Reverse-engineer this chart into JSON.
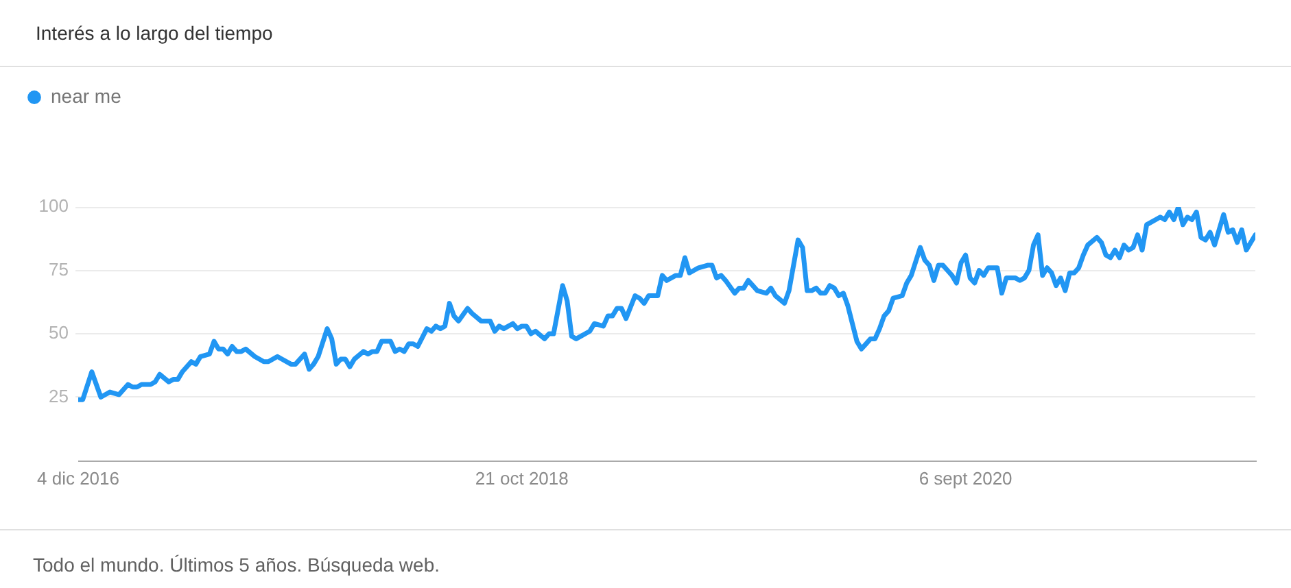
{
  "chart_data": {
    "type": "line",
    "title": "Interés a lo largo del tiempo",
    "legend": "top left",
    "grid": "y",
    "marker": "none",
    "line_style": "solid",
    "x": [
      "2016-12-04",
      "2016-12-11",
      "2016-12-25",
      "2017-01-08",
      "2017-01-15",
      "2017-01-22",
      "2017-02-05",
      "2017-02-19",
      "2017-02-26",
      "2017-03-05",
      "2017-03-12",
      "2017-03-26",
      "2017-04-02",
      "2017-04-09",
      "2017-04-23",
      "2017-04-30",
      "2017-05-07",
      "2017-05-14",
      "2017-05-28",
      "2017-06-04",
      "2017-06-11",
      "2017-06-25",
      "2017-07-02",
      "2017-07-09",
      "2017-07-16",
      "2017-07-23",
      "2017-07-30",
      "2017-08-06",
      "2017-08-13",
      "2017-08-20",
      "2017-09-03",
      "2017-09-17",
      "2017-09-24",
      "2017-10-08",
      "2017-10-15",
      "2017-10-29",
      "2017-11-05",
      "2017-11-19",
      "2017-11-26",
      "2017-12-03",
      "2017-12-10",
      "2017-12-24",
      "2017-12-31",
      "2018-01-07",
      "2018-01-14",
      "2018-01-21",
      "2018-01-28",
      "2018-02-04",
      "2018-02-18",
      "2018-02-25",
      "2018-03-04",
      "2018-03-11",
      "2018-03-18",
      "2018-04-01",
      "2018-04-08",
      "2018-04-15",
      "2018-04-22",
      "2018-04-29",
      "2018-05-06",
      "2018-05-13",
      "2018-05-27",
      "2018-06-03",
      "2018-06-10",
      "2018-06-17",
      "2018-06-24",
      "2018-07-01",
      "2018-07-08",
      "2018-07-15",
      "2018-07-29",
      "2018-08-05",
      "2018-08-19",
      "2018-09-02",
      "2018-09-09",
      "2018-09-16",
      "2018-09-23",
      "2018-10-07",
      "2018-10-14",
      "2018-10-21",
      "2018-10-28",
      "2018-11-04",
      "2018-11-11",
      "2018-11-25",
      "2018-12-02",
      "2018-12-09",
      "2018-12-23",
      "2018-12-30",
      "2019-01-06",
      "2019-01-13",
      "2019-01-27",
      "2019-02-03",
      "2019-02-10",
      "2019-02-24",
      "2019-03-03",
      "2019-03-10",
      "2019-03-17",
      "2019-03-24",
      "2019-03-31",
      "2019-04-14",
      "2019-04-21",
      "2019-04-28",
      "2019-05-05",
      "2019-05-19",
      "2019-05-26",
      "2019-06-02",
      "2019-06-16",
      "2019-06-23",
      "2019-06-30",
      "2019-07-07",
      "2019-07-14",
      "2019-07-21",
      "2019-08-04",
      "2019-08-11",
      "2019-08-18",
      "2019-08-25",
      "2019-09-01",
      "2019-09-15",
      "2019-09-22",
      "2019-09-29",
      "2019-10-06",
      "2019-10-13",
      "2019-10-20",
      "2019-11-03",
      "2019-11-10",
      "2019-11-17",
      "2019-12-01",
      "2019-12-08",
      "2019-12-22",
      "2019-12-29",
      "2020-01-05",
      "2020-01-12",
      "2020-01-19",
      "2020-01-26",
      "2020-02-02",
      "2020-02-09",
      "2020-02-16",
      "2020-02-23",
      "2020-03-01",
      "2020-03-08",
      "2020-03-22",
      "2020-03-29",
      "2020-04-05",
      "2020-04-12",
      "2020-04-19",
      "2020-04-26",
      "2020-05-03",
      "2020-05-10",
      "2020-05-17",
      "2020-05-31",
      "2020-06-07",
      "2020-06-14",
      "2020-06-28",
      "2020-07-05",
      "2020-07-12",
      "2020-07-19",
      "2020-07-26",
      "2020-08-02",
      "2020-08-09",
      "2020-08-16",
      "2020-08-23",
      "2020-08-30",
      "2020-09-06",
      "2020-09-13",
      "2020-09-20",
      "2020-09-27",
      "2020-10-04",
      "2020-10-11",
      "2020-10-25",
      "2020-11-01",
      "2020-11-08",
      "2020-11-22",
      "2020-11-29",
      "2020-12-06",
      "2020-12-13",
      "2020-12-20",
      "2020-12-27",
      "2021-01-03",
      "2021-01-10",
      "2021-01-17",
      "2021-01-24",
      "2021-01-31",
      "2021-02-07",
      "2021-02-14",
      "2021-02-21",
      "2021-02-28",
      "2021-03-07",
      "2021-03-14",
      "2021-03-28",
      "2021-04-04",
      "2021-04-11",
      "2021-04-18",
      "2021-04-25",
      "2021-05-02",
      "2021-05-09",
      "2021-05-16",
      "2021-05-23",
      "2021-05-30",
      "2021-06-06",
      "2021-06-13",
      "2021-06-27",
      "2021-07-04",
      "2021-07-11",
      "2021-07-18",
      "2021-07-25",
      "2021-08-01",
      "2021-08-08",
      "2021-08-15",
      "2021-08-22",
      "2021-08-29",
      "2021-09-05",
      "2021-09-12",
      "2021-09-19",
      "2021-09-26",
      "2021-10-10",
      "2021-10-17",
      "2021-10-24",
      "2021-10-31",
      "2021-11-07",
      "2021-11-14",
      "2021-11-21",
      "2021-11-28"
    ],
    "series": [
      {
        "name": "near me",
        "color": "#2196f3",
        "values": [
          24,
          24,
          35,
          25,
          26,
          27,
          26,
          30,
          29,
          29,
          30,
          30,
          31,
          34,
          31,
          32,
          32,
          35,
          39,
          38,
          41,
          42,
          47,
          44,
          44,
          42,
          45,
          43,
          43,
          44,
          41,
          39,
          39,
          41,
          40,
          38,
          38,
          42,
          36,
          38,
          41,
          52,
          48,
          38,
          40,
          40,
          37,
          40,
          43,
          42,
          43,
          43,
          47,
          47,
          43,
          44,
          43,
          46,
          46,
          45,
          52,
          51,
          53,
          52,
          53,
          62,
          57,
          55,
          60,
          58,
          55,
          55,
          51,
          53,
          52,
          54,
          52,
          53,
          53,
          50,
          51,
          48,
          50,
          50,
          69,
          63,
          49,
          48,
          50,
          51,
          54,
          53,
          57,
          57,
          60,
          60,
          56,
          65,
          64,
          62,
          65,
          65,
          73,
          71,
          73,
          73,
          80,
          74,
          75,
          76,
          77,
          77,
          72,
          73,
          71,
          66,
          68,
          68,
          71,
          69,
          67,
          66,
          68,
          65,
          62,
          67,
          87,
          84,
          67,
          67,
          68,
          66,
          66,
          69,
          68,
          65,
          66,
          61,
          47,
          44,
          46,
          48,
          48,
          52,
          57,
          59,
          64,
          65,
          70,
          73,
          84,
          79,
          77,
          71,
          77,
          77,
          75,
          73,
          70,
          78,
          81,
          72,
          70,
          75,
          73,
          76,
          76,
          66,
          72,
          72,
          71,
          72,
          75,
          85,
          89,
          73,
          76,
          74,
          69,
          72,
          67,
          74,
          74,
          76,
          81,
          85,
          88,
          86,
          81,
          80,
          83,
          80,
          85,
          83,
          84,
          89,
          83,
          93,
          95,
          96,
          95,
          98,
          95,
          100,
          93,
          96,
          95,
          98,
          88,
          87,
          90,
          85,
          97,
          90,
          91,
          86,
          91,
          83,
          86,
          89
        ]
      }
    ],
    "xlim": [
      "2016-12-04",
      "2021-11-28"
    ],
    "xticks": [
      {
        "value": "2016-12-04",
        "label": "4 dic 2016"
      },
      {
        "value": "2018-10-21",
        "label": "21 oct 2018"
      },
      {
        "value": "2020-09-06",
        "label": "6 sept 2020"
      }
    ],
    "ylim": [
      0,
      100
    ],
    "yticks": [
      25,
      50,
      75,
      100
    ],
    "annotations": [
      "Todo el mundo. Últimos 5 años. Búsqueda web."
    ]
  }
}
